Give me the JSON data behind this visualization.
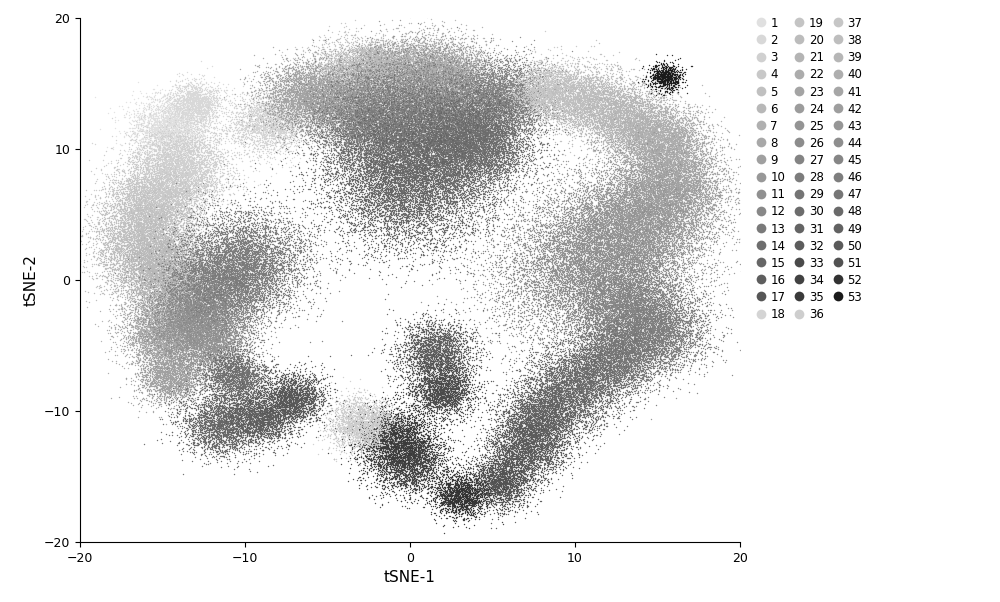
{
  "title": "",
  "xlabel": "tSNE-1",
  "ylabel": "tSNE-2",
  "xlim": [
    -20,
    20
  ],
  "ylim": [
    -20,
    20
  ],
  "xticks": [
    -20,
    -10,
    0,
    10,
    20
  ],
  "yticks": [
    -20,
    -10,
    0,
    10,
    20
  ],
  "n_clusters": 53,
  "cluster_colors": [
    "#e0e0e0",
    "#d8d8d8",
    "#d0d0d0",
    "#c8c8c8",
    "#c0c0c0",
    "#b8b8b8",
    "#b0b0b0",
    "#a8a8a8",
    "#a0a0a0",
    "#989898",
    "#909090",
    "#888888",
    "#7a7a7a",
    "#6e6e6e",
    "#666666",
    "#5e5e5e",
    "#565656",
    "#d4d4d4",
    "#c4c4c4",
    "#bcbcbc",
    "#b4b4b4",
    "#acacac",
    "#a4a4a4",
    "#9c9c9c",
    "#949494",
    "#8c8c8c",
    "#848484",
    "#7c7c7c",
    "#747474",
    "#6c6c6c",
    "#646464",
    "#5c5c5c",
    "#4a4a4a",
    "#424242",
    "#3a3a3a",
    "#cecece",
    "#c6c6c6",
    "#bebebe",
    "#b6b6b6",
    "#aeaeae",
    "#a6a6a6",
    "#9e9e9e",
    "#969696",
    "#8e8e8e",
    "#868686",
    "#7e7e7e",
    "#767676",
    "#6a6a6a",
    "#626262",
    "#5a5a5a",
    "#525252",
    "#323232",
    "#1a1a1a"
  ],
  "cluster_centers": [
    [
      -14.5,
      11.5
    ],
    [
      -13.0,
      13.5
    ],
    [
      -14.0,
      8.5
    ],
    [
      -15.5,
      6.0
    ],
    [
      -16.0,
      3.0
    ],
    [
      -15.0,
      0.5
    ],
    [
      -14.0,
      -2.5
    ],
    [
      -15.0,
      -4.5
    ],
    [
      -14.5,
      -7.5
    ],
    [
      -12.0,
      -5.0
    ],
    [
      -13.0,
      -3.0
    ],
    [
      -11.5,
      -0.5
    ],
    [
      -10.0,
      1.5
    ],
    [
      -10.5,
      -7.5
    ],
    [
      -11.5,
      -11.0
    ],
    [
      -9.0,
      -10.5
    ],
    [
      -7.0,
      -9.0
    ],
    [
      -8.5,
      12.0
    ],
    [
      -4.0,
      15.5
    ],
    [
      -2.0,
      16.5
    ],
    [
      0.5,
      16.0
    ],
    [
      2.5,
      15.5
    ],
    [
      -6.5,
      14.0
    ],
    [
      -3.5,
      13.0
    ],
    [
      0.0,
      13.5
    ],
    [
      3.5,
      12.5
    ],
    [
      6.0,
      14.0
    ],
    [
      -1.5,
      11.5
    ],
    [
      1.5,
      9.5
    ],
    [
      4.0,
      10.5
    ],
    [
      -0.5,
      7.0
    ],
    [
      1.5,
      -5.5
    ],
    [
      2.0,
      -8.5
    ],
    [
      0.0,
      -14.0
    ],
    [
      -1.0,
      -12.0
    ],
    [
      -3.0,
      -11.0
    ],
    [
      8.5,
      14.5
    ],
    [
      11.0,
      13.5
    ],
    [
      13.5,
      12.0
    ],
    [
      15.5,
      10.5
    ],
    [
      16.0,
      7.5
    ],
    [
      14.5,
      5.0
    ],
    [
      12.5,
      3.0
    ],
    [
      10.5,
      0.5
    ],
    [
      13.0,
      -2.0
    ],
    [
      15.0,
      -4.0
    ],
    [
      12.5,
      -6.0
    ],
    [
      10.0,
      -8.0
    ],
    [
      8.0,
      -10.5
    ],
    [
      7.0,
      -13.0
    ],
    [
      5.5,
      -15.5
    ],
    [
      3.0,
      -16.5
    ],
    [
      15.5,
      15.5
    ]
  ],
  "cluster_sizes": [
    3000,
    1500,
    4000,
    3500,
    4500,
    4000,
    3500,
    2500,
    2000,
    2500,
    3000,
    4000,
    5000,
    2000,
    2500,
    2000,
    2000,
    2500,
    3000,
    2000,
    3000,
    3500,
    3000,
    4000,
    5000,
    4500,
    3000,
    5000,
    6000,
    4000,
    6000,
    2500,
    2000,
    2500,
    2500,
    2000,
    2500,
    3000,
    3500,
    3000,
    4000,
    5000,
    6000,
    7000,
    4000,
    3500,
    3000,
    3500,
    3000,
    2500,
    2000,
    1500,
    800
  ],
  "cluster_spreads": [
    1.2,
    0.8,
    1.5,
    1.4,
    1.6,
    1.5,
    1.5,
    1.2,
    1.0,
    1.2,
    1.4,
    1.6,
    2.0,
    1.0,
    1.2,
    1.0,
    1.0,
    1.2,
    1.3,
    0.9,
    1.3,
    1.4,
    1.3,
    1.5,
    2.0,
    1.8,
    1.3,
    2.0,
    2.5,
    1.7,
    2.5,
    1.2,
    1.0,
    1.2,
    1.2,
    1.0,
    1.1,
    1.3,
    1.4,
    1.3,
    1.6,
    2.0,
    2.5,
    3.0,
    1.7,
    1.5,
    1.3,
    1.5,
    1.3,
    1.2,
    1.0,
    0.8,
    0.5
  ],
  "point_size": 1.0,
  "point_alpha": 0.9,
  "background_color": "#ffffff",
  "legend_fontsize": 8.5,
  "axis_label_fontsize": 11,
  "tick_fontsize": 9,
  "figsize": [
    10.0,
    6.02
  ],
  "dpi": 100
}
